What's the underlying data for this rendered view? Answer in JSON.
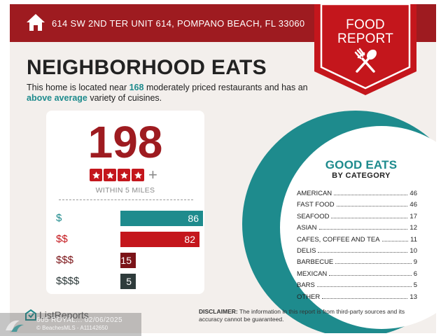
{
  "header": {
    "address": "614 SW 2ND TER UNIT 614, POMPANO BEACH, FL 33060",
    "home_icon": "home-icon"
  },
  "badge": {
    "line1": "FOOD",
    "line2": "REPORT",
    "icon": "fork-spoon-icon"
  },
  "title": "NEIGHBORHOOD EATS",
  "intro": {
    "part1": "This home is located near ",
    "restaurant_count": "168",
    "part2": " moderately priced restaurants and has an ",
    "variety": "above average",
    "part3": " variety of cuisines."
  },
  "summary": {
    "total": "198",
    "stars_filled": 4,
    "plus": "+",
    "radius": "WITHIN 5 MILES"
  },
  "price_levels": [
    {
      "label": "$",
      "count": 86,
      "color": "#1e8b8d"
    },
    {
      "label": "$$",
      "count": 82,
      "color": "#c4161c"
    },
    {
      "label": "$$$",
      "count": 15,
      "color": "#7b1418"
    },
    {
      "label": "$$$$",
      "count": 5,
      "color": "#2e3b3b"
    }
  ],
  "good_eats": {
    "title": "GOOD EATS",
    "subtitle": "BY CATEGORY",
    "categories": [
      {
        "name": "AMERICAN",
        "count": "46"
      },
      {
        "name": "FAST FOOD",
        "count": "46"
      },
      {
        "name": "SEAFOOD",
        "count": "17"
      },
      {
        "name": "ASIAN",
        "count": "12"
      },
      {
        "name": "CAFES, COFFEE AND TEA",
        "count": "11"
      },
      {
        "name": "DELIS",
        "count": "10"
      },
      {
        "name": "BARBECUE",
        "count": "9"
      },
      {
        "name": "MEXICAN",
        "count": "6"
      },
      {
        "name": "BARS",
        "count": "5"
      },
      {
        "name": "OTHER",
        "count": "13"
      }
    ]
  },
  "disclaimer": {
    "label": "DISCLAIMER:",
    "text": " The information in this report is from third-party sources and its accuracy cannot be guaranteed."
  },
  "logo": {
    "text": "ListReports",
    "icon": "listreports-logo-icon"
  },
  "watermark": {
    "line1": "605 ROYAL... 02/06/2025",
    "line2": "© BeachesMLS - A11142650"
  },
  "colors": {
    "brand_red": "#9e1b20",
    "teal": "#1e8b8d",
    "background": "#f3efec"
  }
}
